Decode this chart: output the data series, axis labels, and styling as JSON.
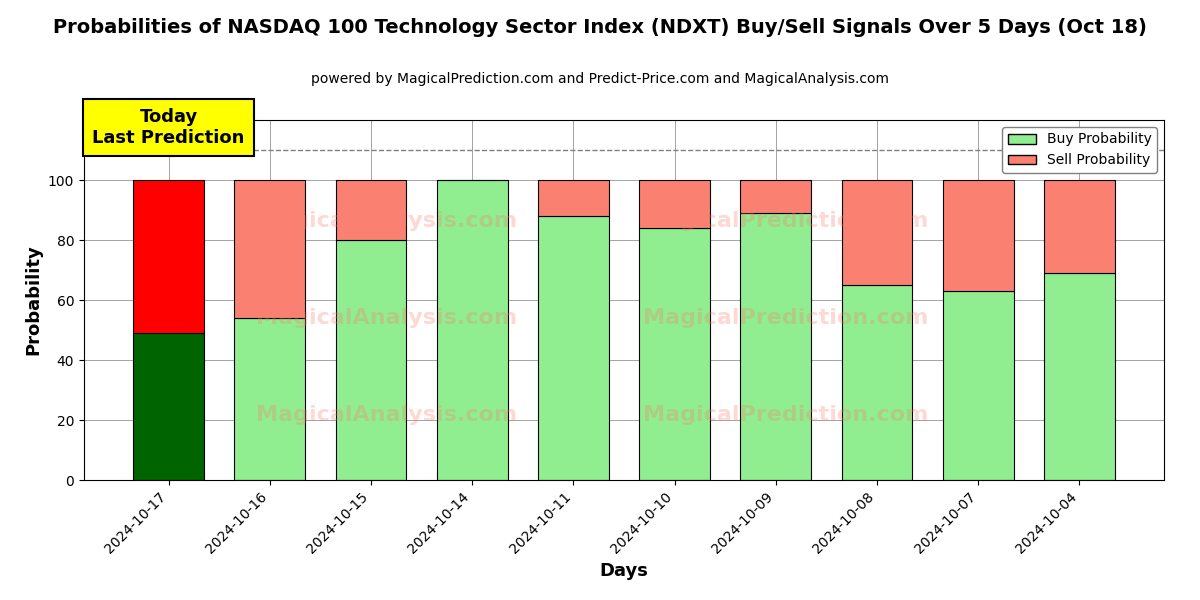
{
  "title": "Probabilities of NASDAQ 100 Technology Sector Index (NDXT) Buy/Sell Signals Over 5 Days (Oct 18)",
  "subtitle": "powered by MagicalPrediction.com and Predict-Price.com and MagicalAnalysis.com",
  "xlabel": "Days",
  "ylabel": "Probability",
  "categories": [
    "2024-10-17",
    "2024-10-16",
    "2024-10-15",
    "2024-10-14",
    "2024-10-11",
    "2024-10-10",
    "2024-10-09",
    "2024-10-08",
    "2024-10-07",
    "2024-10-04"
  ],
  "buy_values": [
    49,
    54,
    80,
    100,
    88,
    84,
    89,
    65,
    63,
    69
  ],
  "sell_values": [
    51,
    46,
    20,
    0,
    12,
    16,
    11,
    35,
    37,
    31
  ],
  "buy_colors": [
    "#006400",
    "#90EE90",
    "#90EE90",
    "#90EE90",
    "#90EE90",
    "#90EE90",
    "#90EE90",
    "#90EE90",
    "#90EE90",
    "#90EE90"
  ],
  "sell_colors": [
    "#FF0000",
    "#FA8072",
    "#FA8072",
    "#FA8072",
    "#FA8072",
    "#FA8072",
    "#FA8072",
    "#FA8072",
    "#FA8072",
    "#FA8072"
  ],
  "today_annotation": "Today\nLast Prediction",
  "ylim": [
    0,
    120
  ],
  "yticks": [
    0,
    20,
    40,
    60,
    80,
    100
  ],
  "dashed_line_y": 110,
  "legend_buy_color": "#90EE90",
  "legend_sell_color": "#FA8072",
  "legend_buy_label": "Buy Probability",
  "legend_sell_label": "Sell Probability",
  "background_color": "#FFFFFF",
  "bar_edge_color": "#000000",
  "bar_linewidth": 0.8,
  "title_fontsize": 14,
  "subtitle_fontsize": 10,
  "watermark1": "MagicalAnalysis.com",
  "watermark2": "MagicalPrediction.com",
  "watermark3": "MagicalPrediction.com",
  "wm_color": "#FA8072",
  "wm_alpha": 0.3
}
